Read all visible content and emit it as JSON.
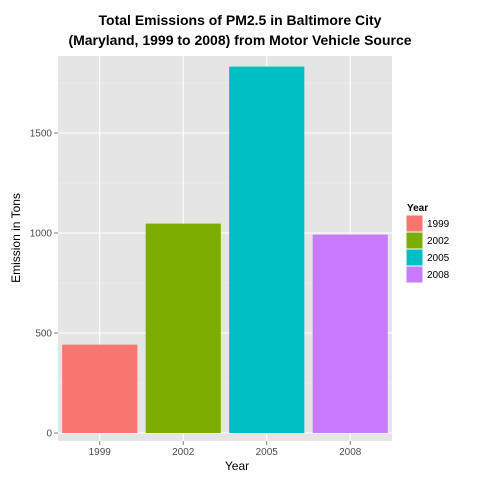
{
  "chart_data": {
    "type": "bar",
    "title_line1": "Total Emissions of PM2.5 in Baltimore City",
    "title_line2": "(Maryland, 1999 to 2008) from Motor Vehicle Source",
    "xlabel": "Year",
    "ylabel": "Emission in Tons",
    "categories": [
      "1999",
      "2002",
      "2005",
      "2008"
    ],
    "values": [
      442,
      1047,
      1832,
      992
    ],
    "colors": [
      "#F8766D",
      "#7CAE00",
      "#00BFC4",
      "#C77CFF"
    ],
    "ylim": [
      0,
      1925
    ],
    "yticks": [
      0,
      500,
      1000,
      1500
    ],
    "ytick_labels": [
      "0",
      "500",
      "1000",
      "1500"
    ],
    "grid": true,
    "legend": {
      "title": "Year",
      "placement": "right",
      "entries": [
        "1999",
        "2002",
        "2005",
        "2008"
      ]
    },
    "panel_background": "#E5E5E5",
    "grid_color": "#FFFFFF"
  }
}
